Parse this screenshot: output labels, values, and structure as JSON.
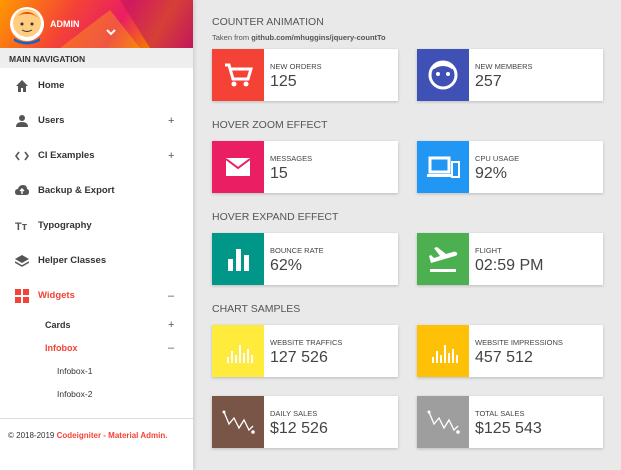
{
  "sidebar": {
    "user": "ADMIN",
    "nav_header": "MAIN NAVIGATION",
    "menu": [
      {
        "label": "Home"
      },
      {
        "label": "Users",
        "toggle": "+"
      },
      {
        "label": "CI Examples",
        "toggle": "+"
      },
      {
        "label": "Backup & Export"
      },
      {
        "label": "Typography"
      },
      {
        "label": "Helper Classes"
      },
      {
        "label": "Widgets",
        "toggle": "–",
        "active": true,
        "children": [
          {
            "label": "Cards",
            "toggle": "+"
          },
          {
            "label": "Infobox",
            "toggle": "–",
            "active": true,
            "children": [
              {
                "label": "Infobox-1"
              },
              {
                "label": "Infobox-2"
              }
            ]
          }
        ]
      }
    ],
    "footer": {
      "copyright": "© 2018-2019",
      "brand": "Codeigniter - Material Admin."
    }
  },
  "sections": [
    {
      "title": "COUNTER ANIMATION",
      "subtitle": {
        "prefix": "Taken from",
        "link": "github.com/mhuggins/jquery-countTo"
      },
      "cards": [
        {
          "label": "NEW ORDERS",
          "value": "125",
          "color": "#f44336"
        },
        {
          "label": "NEW MEMBERS",
          "value": "257",
          "color": "#3f51b5"
        }
      ]
    },
    {
      "title": "HOVER ZOOM EFFECT",
      "cards": [
        {
          "label": "MESSAGES",
          "value": "15",
          "color": "#e91e63"
        },
        {
          "label": "CPU USAGE",
          "value": "92%",
          "color": "#2196f3"
        }
      ]
    },
    {
      "title": "HOVER EXPAND EFFECT",
      "cards": [
        {
          "label": "BOUNCE RATE",
          "value": "62%",
          "color": "#009688"
        },
        {
          "label": "FLIGHT",
          "value": "02:59 PM",
          "color": "#4caf50"
        }
      ]
    },
    {
      "title": "CHART SAMPLES",
      "cards": [
        {
          "label": "WEBSITE TRAFFICS",
          "value": "127 526",
          "color": "#ffeb3b"
        },
        {
          "label": "WEBSITE IMPRESSIONS",
          "value": "457 512",
          "color": "#ffc107"
        },
        {
          "label": "DAILY SALES",
          "value": "$12 526",
          "color": "#795548"
        },
        {
          "label": "TOTAL SALES",
          "value": "$125 543",
          "color": "#9e9e9e"
        }
      ]
    }
  ]
}
